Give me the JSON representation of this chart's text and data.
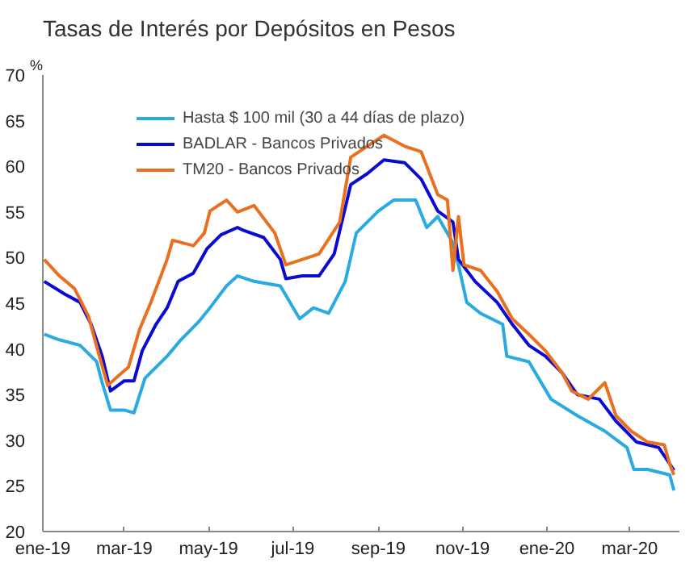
{
  "chart_data": {
    "type": "line",
    "title": "Tasas de Interés por Depósitos en Pesos",
    "ylabel": "%",
    "xlim": [
      "2019-01-01",
      "2020-04-06"
    ],
    "ylim": [
      20,
      70
    ],
    "yticks": [
      20,
      25,
      30,
      35,
      40,
      45,
      50,
      55,
      60,
      65,
      70
    ],
    "xticks": [
      {
        "value": "2019-01-01",
        "label": "ene-19"
      },
      {
        "value": "2019-03-01",
        "label": "mar-19"
      },
      {
        "value": "2019-05-01",
        "label": "may-19"
      },
      {
        "value": "2019-07-01",
        "label": "jul-19"
      },
      {
        "value": "2019-09-01",
        "label": "sep-19"
      },
      {
        "value": "2019-11-01",
        "label": "nov-19"
      },
      {
        "value": "2020-01-01",
        "label": "ene-20"
      },
      {
        "value": "2020-03-01",
        "label": "mar-20"
      }
    ],
    "grid": false,
    "legend": "top left",
    "marker": "none",
    "line_style": "solid",
    "series": [
      {
        "name": "Hasta $ 100 mil (30 a 44 días de plazo)",
        "color": "#29aae1",
        "x": [
          "2019-01-02",
          "2019-01-13",
          "2019-01-28",
          "2019-02-09",
          "2019-02-13",
          "2019-02-19",
          "2019-03-01",
          "2019-03-08",
          "2019-03-16",
          "2019-04-01",
          "2019-04-11",
          "2019-04-24",
          "2019-05-02",
          "2019-05-14",
          "2019-05-22",
          "2019-06-03",
          "2019-06-22",
          "2019-07-06",
          "2019-07-16",
          "2019-07-27",
          "2019-08-08",
          "2019-08-16",
          "2019-09-01",
          "2019-09-12",
          "2019-09-28",
          "2019-10-06",
          "2019-10-14",
          "2019-10-25",
          "2019-10-29",
          "2019-11-04",
          "2019-11-14",
          "2019-11-30",
          "2019-12-03",
          "2019-12-19",
          "2020-01-04",
          "2020-01-23",
          "2020-02-12",
          "2020-02-28",
          "2020-03-04",
          "2020-03-14",
          "2020-03-30",
          "2020-04-02"
        ],
        "values": [
          41.6,
          41.0,
          40.4,
          38.6,
          36.3,
          33.3,
          33.3,
          33.0,
          36.8,
          39.2,
          41.0,
          43.0,
          44.5,
          46.9,
          48.0,
          47.4,
          46.9,
          43.3,
          44.5,
          43.9,
          47.4,
          52.7,
          55.1,
          56.3,
          56.3,
          53.3,
          54.5,
          51.6,
          49.2,
          45.1,
          43.9,
          42.7,
          39.2,
          38.6,
          34.5,
          32.7,
          31.0,
          29.2,
          26.8,
          26.8,
          26.2,
          24.5
        ]
      },
      {
        "name": "BADLAR - Bancos Privados",
        "color": "#0a0ad2",
        "x": [
          "2019-01-02",
          "2019-01-17",
          "2019-01-28",
          "2019-02-05",
          "2019-02-13",
          "2019-02-19",
          "2019-03-01",
          "2019-03-08",
          "2019-03-14",
          "2019-03-24",
          "2019-04-01",
          "2019-04-09",
          "2019-04-20",
          "2019-04-30",
          "2019-05-10",
          "2019-05-22",
          "2019-05-26",
          "2019-06-10",
          "2019-06-22",
          "2019-06-26",
          "2019-07-08",
          "2019-07-20",
          "2019-07-31",
          "2019-08-12",
          "2019-08-24",
          "2019-09-05",
          "2019-09-20",
          "2019-10-02",
          "2019-10-14",
          "2019-10-25",
          "2019-10-29",
          "2019-11-10",
          "2019-11-26",
          "2019-12-07",
          "2019-12-19",
          "2019-12-31",
          "2020-01-12",
          "2020-01-23",
          "2020-02-08",
          "2020-02-20",
          "2020-03-06",
          "2020-03-22",
          "2020-03-30",
          "2020-04-02"
        ],
        "values": [
          47.4,
          46.0,
          45.1,
          42.7,
          39.2,
          35.4,
          36.5,
          36.5,
          39.8,
          42.7,
          44.5,
          47.4,
          48.3,
          51.0,
          52.5,
          53.3,
          53.0,
          52.2,
          49.8,
          47.7,
          48.0,
          48.0,
          50.4,
          58.0,
          59.2,
          60.7,
          60.4,
          58.6,
          55.1,
          53.9,
          49.8,
          47.4,
          45.1,
          42.7,
          40.4,
          39.2,
          37.4,
          35.0,
          34.5,
          32.1,
          29.8,
          29.2,
          27.4,
          26.7
        ]
      },
      {
        "name": "TM20 - Bancos Privados",
        "color": "#e9701f",
        "x": [
          "2019-01-02",
          "2019-01-13",
          "2019-01-24",
          "2019-02-03",
          "2019-02-11",
          "2019-02-17",
          "2019-02-25",
          "2019-03-04",
          "2019-03-12",
          "2019-03-20",
          "2019-04-01",
          "2019-04-05",
          "2019-04-20",
          "2019-04-28",
          "2019-05-02",
          "2019-05-14",
          "2019-05-22",
          "2019-06-03",
          "2019-06-18",
          "2019-06-26",
          "2019-07-08",
          "2019-07-20",
          "2019-08-04",
          "2019-08-12",
          "2019-08-24",
          "2019-09-05",
          "2019-09-20",
          "2019-10-02",
          "2019-10-14",
          "2019-10-21",
          "2019-10-25",
          "2019-10-29",
          "2019-11-02",
          "2019-11-14",
          "2019-11-26",
          "2019-12-07",
          "2019-12-19",
          "2019-12-31",
          "2020-01-12",
          "2020-01-19",
          "2020-01-31",
          "2020-02-12",
          "2020-02-20",
          "2020-03-02",
          "2020-03-14",
          "2020-03-26",
          "2020-03-30",
          "2020-04-02"
        ],
        "values": [
          49.8,
          48.0,
          46.6,
          43.6,
          39.2,
          36.0,
          37.1,
          38.0,
          42.1,
          45.0,
          49.8,
          51.9,
          51.3,
          52.7,
          55.1,
          56.3,
          55.0,
          55.7,
          52.7,
          49.2,
          49.8,
          50.4,
          53.9,
          61.0,
          62.2,
          63.4,
          62.2,
          61.6,
          56.9,
          56.3,
          48.6,
          54.5,
          49.2,
          48.6,
          46.3,
          43.3,
          41.6,
          39.8,
          37.4,
          35.4,
          34.5,
          36.3,
          32.7,
          31.0,
          29.8,
          29.5,
          27.4,
          26.2
        ]
      }
    ]
  }
}
